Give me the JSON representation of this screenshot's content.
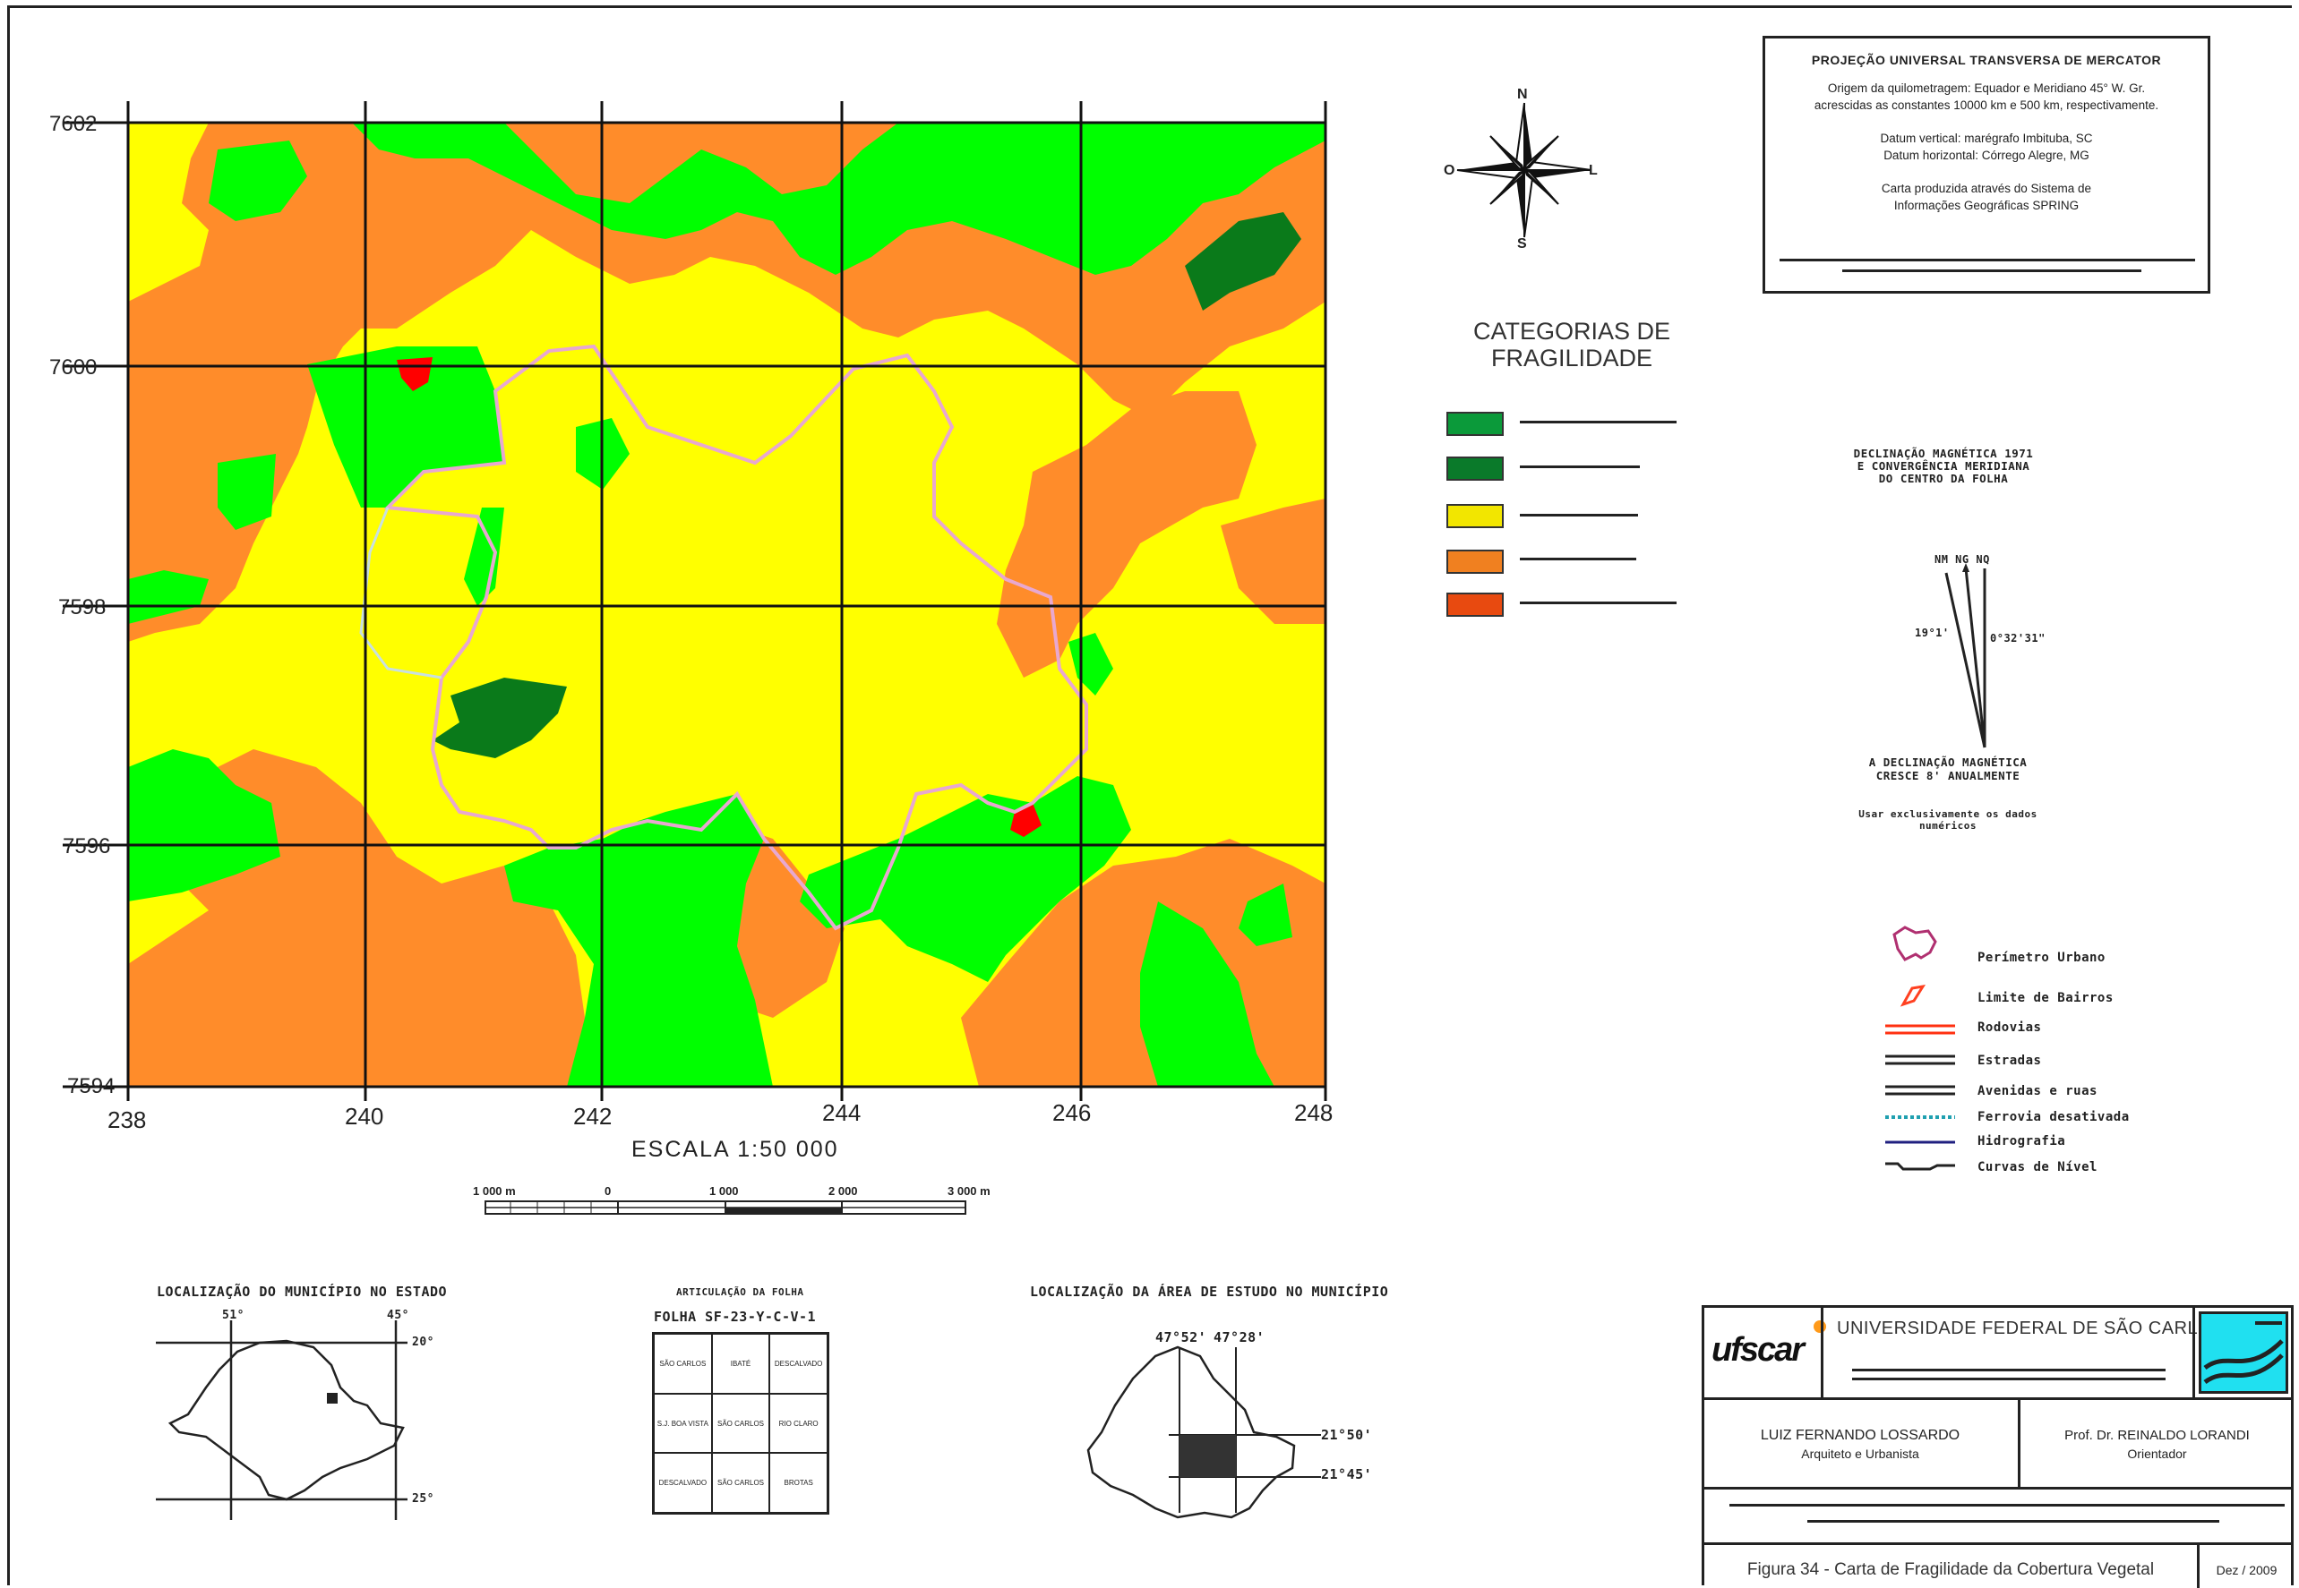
{
  "map": {
    "grid_x_labels": [
      "238",
      "240",
      "242",
      "244",
      "246",
      "248"
    ],
    "grid_y_labels": [
      "7602",
      "7600",
      "7598",
      "7596",
      "7594"
    ],
    "scale_title": "ESCALA 1:50 000",
    "scale_ticks": [
      "1 000 m",
      "0",
      "1 000",
      "2 000",
      "3 000 m"
    ],
    "colors": {
      "very_high_veg": "#00ff00",
      "dark_forest": "#0a7a1a",
      "medium": "#ffff00",
      "orange": "#ff8c2a",
      "red": "#ff0000",
      "urban_line": "#e8a8d0"
    }
  },
  "compass": {
    "n": "N",
    "s": "S",
    "e": "L",
    "w": "O"
  },
  "projection": {
    "title": "PROJEÇÃO UNIVERSAL TRANSVERSA DE MERCATOR",
    "line1": "Origem da quilometragem: Equador e Meridiano 45° W. Gr.",
    "line2": "acrescidas as constantes 10000 km e 500 km, respectivamente.",
    "line3": "Datum vertical: marégrafo Imbituba, SC",
    "line4": "Datum horizontal: Córrego Alegre, MG",
    "line5": "Carta produzida através do Sistema de",
    "line6": "Informações Geográficas SPRING"
  },
  "categories": {
    "title_line1": "CATEGORIAS DE",
    "title_line2": "FRAGILIDADE",
    "swatch_colors": [
      "#0b9a3a",
      "#0a7a2a",
      "#f2e600",
      "#f08020",
      "#e84a10"
    ]
  },
  "declination": {
    "title1": "DECLINAÇÃO MAGNÉTICA 1971",
    "title2": "E CONVERGÊNCIA MERIDIANA",
    "title3": "DO CENTRO DA FOLHA",
    "labels": "NM NG NQ",
    "left_angle": "19°1'",
    "right_angle": "0°32'31\"",
    "note1": "A DECLINAÇÃO MAGNÉTICA",
    "note2": "CRESCE 8' ANUALMENTE",
    "note3": "Usar exclusivamente os dados numéricos"
  },
  "conventions": {
    "items": [
      "Perímetro Urbano",
      "Limite de Bairros",
      "Rodovias",
      "Estradas",
      "Avenidas e ruas",
      "Ferrovia desativada",
      "Hidrografia",
      "Curvas de Nível"
    ]
  },
  "insets": {
    "state_title": "LOCALIZAÇÃO DO MUNICÍPIO NO ESTADO",
    "state_lon1": "51°",
    "state_lon2": "45°",
    "state_lat1": "20°",
    "state_lat2": "25°",
    "sheet_title": "ARTICULAÇÃO DA FOLHA",
    "sheet_id": "FOLHA SF-23-Y-C-V-1",
    "sheet_cells": [
      "SÃO CARLOS",
      "IBATÉ",
      "DESCALVADO",
      "S.J. BOA VISTA",
      "SÃO CARLOS",
      "RIO CLARO",
      "DESCALVADO",
      "SÃO CARLOS",
      "BROTAS"
    ],
    "area_title": "LOCALIZAÇÃO DA ÁREA DE ESTUDO NO MUNICÍPIO",
    "area_lon1": "47°52'",
    "area_lon2": "47°28'",
    "area_lat1": "21°50'",
    "area_lat2": "21°45'"
  },
  "titleblock": {
    "logo_text": "ufscar",
    "university": "UNIVERSIDADE FEDERAL DE SÃO CARLOS",
    "author": "LUIZ FERNANDO LOSSARDO",
    "author_role": "Arquiteto e Urbanista",
    "advisor": "Prof. Dr. REINALDO LORANDI",
    "advisor_role": "Orientador",
    "figure": "Figura 34 - Carta de Fragilidade da Cobertura Vegetal",
    "date": "Dez / 2009"
  }
}
